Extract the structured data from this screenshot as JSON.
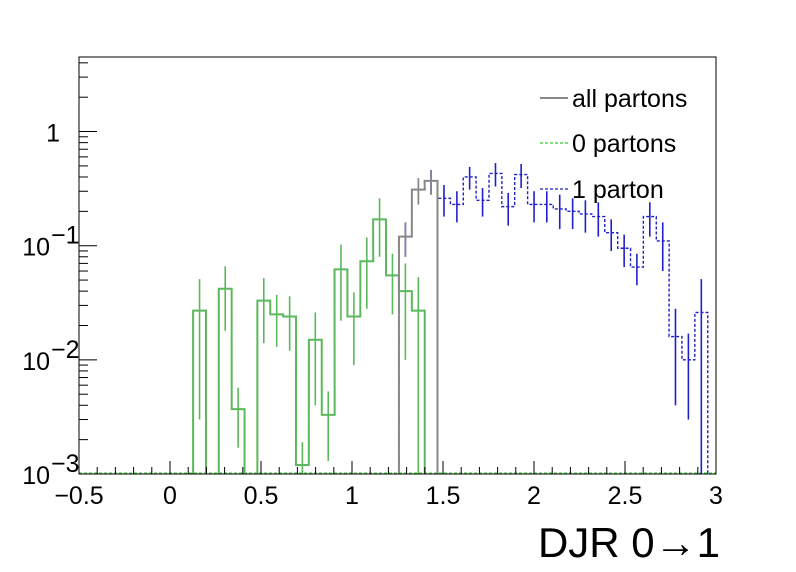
{
  "chart_data": {
    "type": "histogram",
    "xlabel": "DJR 0→1",
    "ylabel": "",
    "xlim": [
      -0.5,
      3.0
    ],
    "ylim": [
      0.001,
      4.5
    ],
    "yscale": "log",
    "grid": false,
    "legend_position": "top-right",
    "bin_width": 0.0707,
    "x_ticks": [
      {
        "value": -0.5,
        "label": "−0.5"
      },
      {
        "value": 0,
        "label": "0"
      },
      {
        "value": 0.5,
        "label": "0.5"
      },
      {
        "value": 1,
        "label": "1"
      },
      {
        "value": 1.5,
        "label": "1.5"
      },
      {
        "value": 2,
        "label": "2"
      },
      {
        "value": 2.5,
        "label": "2.5"
      },
      {
        "value": 3,
        "label": "3"
      }
    ],
    "y_ticks": [
      {
        "value": 0.001,
        "base": "10",
        "exp": "−3"
      },
      {
        "value": 0.01,
        "base": "10",
        "exp": "−2"
      },
      {
        "value": 0.1,
        "base": "10",
        "exp": "−1"
      },
      {
        "value": 1,
        "base": "1",
        "exp": ""
      }
    ],
    "series": [
      {
        "name": "all partons",
        "color": "#888888",
        "dash": "solid",
        "bins": [
          {
            "x": 1.258,
            "y": 0.12,
            "err": 0.04
          },
          {
            "x": 1.329,
            "y": 0.31,
            "err": 0.08
          },
          {
            "x": 1.399,
            "y": 0.37,
            "err": 0.09
          }
        ]
      },
      {
        "name": "0 partons",
        "color": "#33cc33",
        "dash": "dashed",
        "bins": [
          {
            "x": 0.127,
            "y": 0.027,
            "err": 0.024
          },
          {
            "x": 0.268,
            "y": 0.042,
            "err": 0.024
          },
          {
            "x": 0.339,
            "y": 0.0037,
            "err": 0.002
          },
          {
            "x": 0.48,
            "y": 0.033,
            "err": 0.019
          },
          {
            "x": 0.551,
            "y": 0.025,
            "err": 0.012
          },
          {
            "x": 0.622,
            "y": 0.024,
            "err": 0.012
          },
          {
            "x": 0.692,
            "y": 0.0012,
            "err": 0.0007
          },
          {
            "x": 0.763,
            "y": 0.015,
            "err": 0.011
          },
          {
            "x": 0.834,
            "y": 0.0033,
            "err": 0.002
          },
          {
            "x": 0.904,
            "y": 0.062,
            "err": 0.04
          },
          {
            "x": 0.975,
            "y": 0.024,
            "err": 0.015
          },
          {
            "x": 1.046,
            "y": 0.073,
            "err": 0.045
          },
          {
            "x": 1.116,
            "y": 0.17,
            "err": 0.09
          },
          {
            "x": 1.187,
            "y": 0.055,
            "err": 0.03
          },
          {
            "x": 1.258,
            "y": 0.04,
            "err": 0.03
          },
          {
            "x": 1.329,
            "y": 0.027,
            "err": 0.026
          }
        ]
      },
      {
        "name": "1 parton",
        "color": "#1f1fcc",
        "dash": "dashed",
        "bins": [
          {
            "x": 1.258,
            "y": 0.12,
            "err": 0.04
          },
          {
            "x": 1.329,
            "y": 0.31,
            "err": 0.08
          },
          {
            "x": 1.399,
            "y": 0.37,
            "err": 0.09
          },
          {
            "x": 1.47,
            "y": 0.26,
            "err": 0.08
          },
          {
            "x": 1.541,
            "y": 0.23,
            "err": 0.07
          },
          {
            "x": 1.611,
            "y": 0.4,
            "err": 0.09
          },
          {
            "x": 1.682,
            "y": 0.25,
            "err": 0.07
          },
          {
            "x": 1.753,
            "y": 0.43,
            "err": 0.1
          },
          {
            "x": 1.823,
            "y": 0.22,
            "err": 0.07
          },
          {
            "x": 1.894,
            "y": 0.42,
            "err": 0.1
          },
          {
            "x": 1.965,
            "y": 0.23,
            "err": 0.07
          },
          {
            "x": 2.035,
            "y": 0.23,
            "err": 0.07
          },
          {
            "x": 2.106,
            "y": 0.21,
            "err": 0.07
          },
          {
            "x": 2.177,
            "y": 0.2,
            "err": 0.06
          },
          {
            "x": 2.247,
            "y": 0.19,
            "err": 0.06
          },
          {
            "x": 2.318,
            "y": 0.18,
            "err": 0.06
          },
          {
            "x": 2.389,
            "y": 0.13,
            "err": 0.04
          },
          {
            "x": 2.46,
            "y": 0.095,
            "err": 0.03
          },
          {
            "x": 2.53,
            "y": 0.065,
            "err": 0.02
          },
          {
            "x": 2.601,
            "y": 0.18,
            "err": 0.06
          },
          {
            "x": 2.672,
            "y": 0.11,
            "err": 0.05
          },
          {
            "x": 2.742,
            "y": 0.016,
            "err": 0.012
          },
          {
            "x": 2.813,
            "y": 0.01,
            "err": 0.007
          },
          {
            "x": 2.884,
            "y": 0.026,
            "err": 0.025
          }
        ]
      }
    ]
  }
}
